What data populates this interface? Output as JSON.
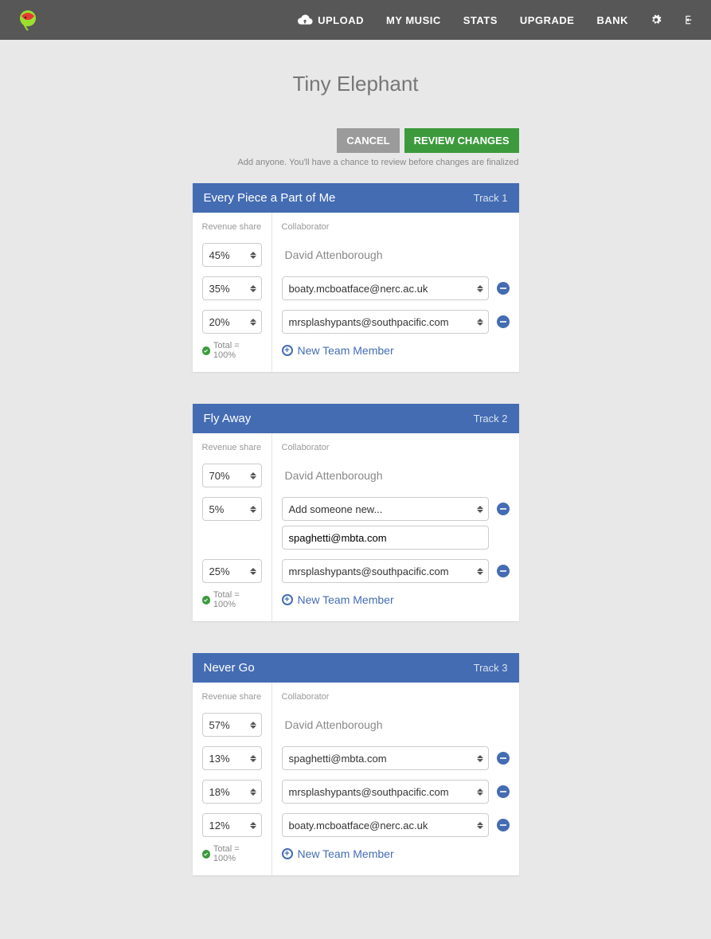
{
  "colors": {
    "topbar": "#575757",
    "page_bg": "#e8e8e8",
    "panel_header": "#446cb3",
    "cancel_btn": "#9b9b9b",
    "review_btn": "#3c9a3c",
    "accent_blue": "#446cb3",
    "success_green": "#3c9a3c",
    "logo_green": "#9be02e",
    "logo_red": "#e53935"
  },
  "nav": {
    "upload": "UPLOAD",
    "my_music": "MY MUSIC",
    "stats": "STATS",
    "upgrade": "UPGRADE",
    "bank": "BANK"
  },
  "page_title": "Tiny Elephant",
  "actions": {
    "cancel": "CANCEL",
    "review": "REVIEW CHANGES"
  },
  "helper_text": "Add anyone. You'll have a chance to review before changes are finalized",
  "labels": {
    "revenue_share": "Revenue share",
    "collaborator": "Collaborator",
    "total": "Total = 100%",
    "new_team_member": "New Team Member"
  },
  "tracks": [
    {
      "title": "Every Piece a Part of Me",
      "track_label": "Track 1",
      "owner": {
        "share": "45%",
        "name": "David Attenborough"
      },
      "collaborators": [
        {
          "share": "35%",
          "value": "boaty.mcboatface@nerc.ac.uk",
          "type": "select"
        },
        {
          "share": "20%",
          "value": "mrsplashypants@southpacific.com",
          "type": "select"
        }
      ]
    },
    {
      "title": "Fly Away",
      "track_label": "Track 2",
      "owner": {
        "share": "70%",
        "name": "David Attenborough"
      },
      "collaborators": [
        {
          "share": "5%",
          "value": "Add someone new...",
          "type": "select",
          "text_input": "spaghetti@mbta.com"
        },
        {
          "share": "25%",
          "value": "mrsplashypants@southpacific.com",
          "type": "select"
        }
      ]
    },
    {
      "title": "Never Go",
      "track_label": "Track 3",
      "owner": {
        "share": "57%",
        "name": "David Attenborough"
      },
      "collaborators": [
        {
          "share": "13%",
          "value": "spaghetti@mbta.com",
          "type": "select"
        },
        {
          "share": "18%",
          "value": "mrsplashypants@southpacific.com",
          "type": "select"
        },
        {
          "share": "12%",
          "value": "boaty.mcboatface@nerc.ac.uk",
          "type": "select"
        }
      ]
    }
  ]
}
